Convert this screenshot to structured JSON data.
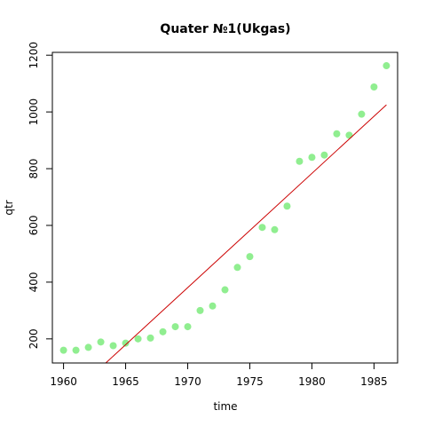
{
  "chart_data": {
    "type": "scatter",
    "title": "Quater №1(Ukgas)",
    "xlabel": "time",
    "ylabel": "qtr",
    "xlim": [
      1959.1,
      1986.9
    ],
    "ylim": [
      115,
      1210
    ],
    "x_ticks": [
      1960,
      1965,
      1970,
      1975,
      1980,
      1985
    ],
    "y_ticks": [
      200,
      400,
      600,
      800,
      1000,
      1200
    ],
    "grid": false,
    "legend": "none",
    "point_color": "#90ee90",
    "line_color": "#cc0000",
    "x": [
      1960,
      1961,
      1962,
      1963,
      1964,
      1965,
      1966,
      1967,
      1968,
      1969,
      1970,
      1971,
      1972,
      1973,
      1974,
      1975,
      1976,
      1977,
      1978,
      1979,
      1980,
      1981,
      1982,
      1983,
      1984,
      1985,
      1986
    ],
    "y": [
      160,
      160,
      170,
      189,
      176,
      185,
      200,
      203,
      225,
      243,
      243,
      300,
      316,
      373,
      452,
      490,
      593,
      585,
      668,
      826,
      840,
      848,
      923,
      918,
      992,
      1088,
      1163
    ],
    "trend_line": {
      "x": [
        1963.4,
        1986
      ],
      "y": [
        115,
        1025
      ]
    }
  }
}
